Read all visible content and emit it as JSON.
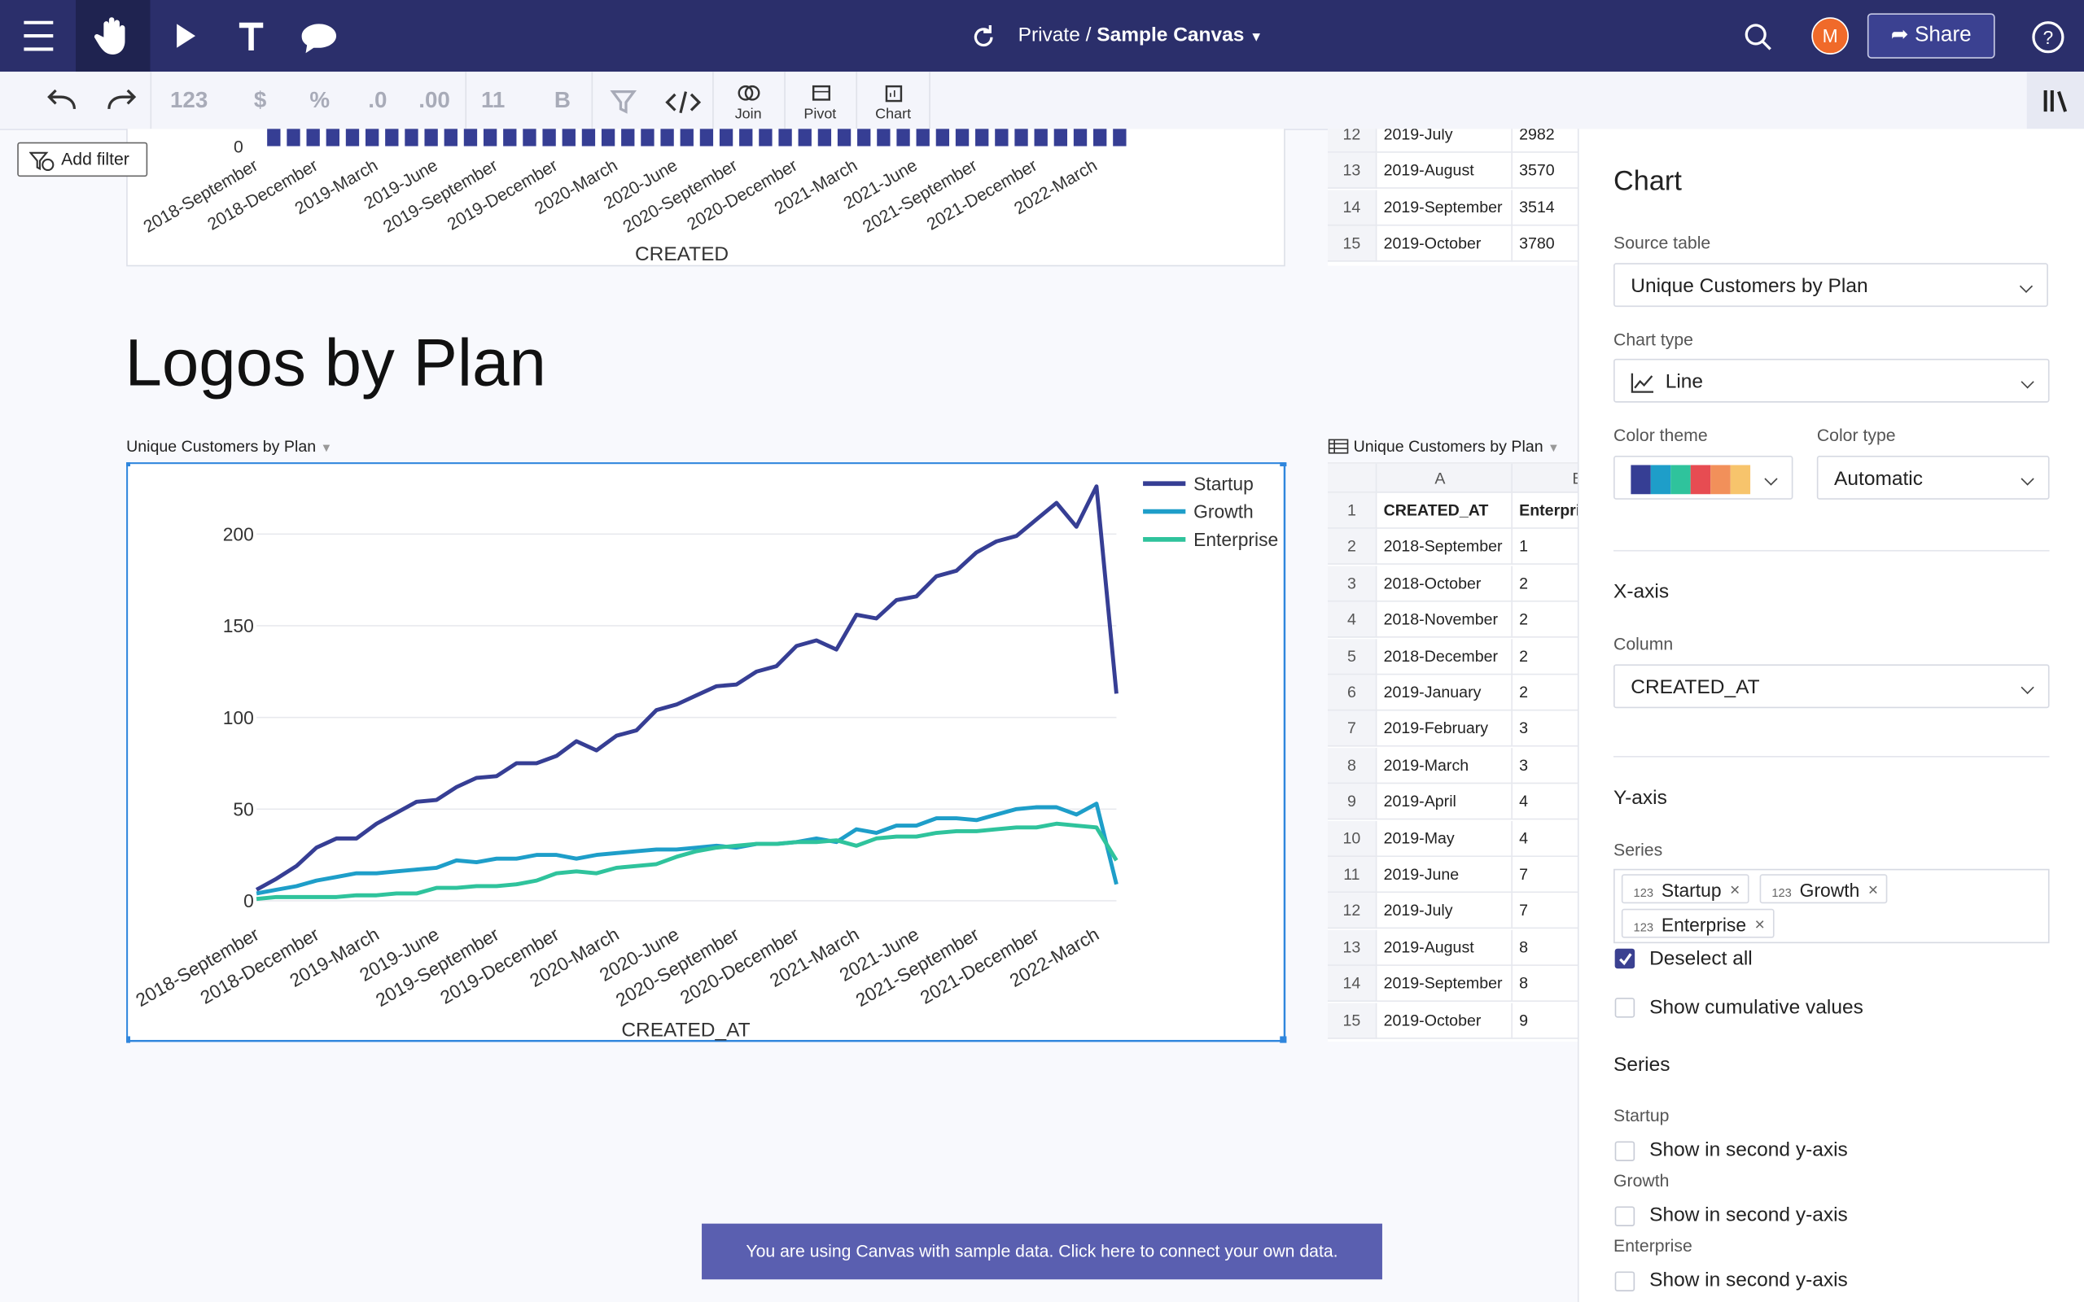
{
  "header": {
    "title_prefix": "Private /",
    "title": "Sample Canvas",
    "avatar": "M",
    "share": "Share"
  },
  "toolbar": {
    "number_format": "123",
    "currency": "$",
    "percent": "%",
    "decrease_decimals": ".0",
    "increase_decimals": ".00",
    "font_size": "11",
    "bold": "B",
    "join": "Join",
    "pivot": "Pivot",
    "chart": "Chart"
  },
  "add_filter": "Add filter",
  "top_chart": {
    "ytick": "0",
    "x_labels": [
      "2018-September",
      "2018-December",
      "2019-March",
      "2019-June",
      "2019-September",
      "2019-December",
      "2020-March",
      "2020-June",
      "2020-September",
      "2020-December",
      "2021-March",
      "2021-June",
      "2021-September",
      "2021-December",
      "2022-March"
    ],
    "x_axis_label": "CREATED"
  },
  "top_table": {
    "rows": [
      [
        "12",
        "2019-July",
        "2982"
      ],
      [
        "13",
        "2019-August",
        "3570"
      ],
      [
        "14",
        "2019-September",
        "3514"
      ],
      [
        "15",
        "2019-October",
        "3780"
      ]
    ]
  },
  "section_title": "Logos by Plan",
  "chart_source": "Unique Customers by Plan",
  "chart_data": {
    "type": "line",
    "x_label": "CREATED_AT",
    "categories": [
      "2018-September",
      null,
      null,
      "2018-December",
      null,
      null,
      "2019-March",
      null,
      null,
      "2019-June",
      null,
      null,
      "2019-September",
      null,
      null,
      "2019-December",
      null,
      null,
      "2020-March",
      null,
      null,
      "2020-June",
      null,
      null,
      "2020-September",
      null,
      null,
      "2020-December",
      null,
      null,
      "2021-March",
      null,
      null,
      "2021-June",
      null,
      null,
      "2021-September",
      null,
      null,
      "2021-December",
      null,
      null,
      "2022-March",
      null
    ],
    "series": [
      {
        "name": "Startup",
        "color": "#363e94",
        "values": [
          6,
          12,
          19,
          29,
          34,
          34,
          42,
          48,
          54,
          55,
          62,
          67,
          68,
          75,
          75,
          79,
          87,
          82,
          90,
          93,
          104,
          107,
          112,
          117,
          118,
          125,
          128,
          139,
          142,
          137,
          156,
          154,
          164,
          166,
          177,
          180,
          190,
          196,
          199,
          208,
          217,
          204,
          226,
          113
        ]
      },
      {
        "name": "Growth",
        "color": "#1e9ec9",
        "values": [
          4,
          6,
          8,
          11,
          13,
          15,
          15,
          16,
          17,
          18,
          22,
          21,
          23,
          23,
          25,
          25,
          23,
          25,
          26,
          27,
          28,
          28,
          29,
          30,
          29,
          31,
          31,
          32,
          34,
          32,
          39,
          37,
          41,
          41,
          45,
          45,
          44,
          47,
          50,
          51,
          51,
          47,
          53,
          9
        ]
      },
      {
        "name": "Enterprise",
        "color": "#2fc39c",
        "values": [
          1,
          2,
          2,
          2,
          2,
          3,
          3,
          4,
          4,
          7,
          7,
          8,
          8,
          9,
          11,
          15,
          16,
          15,
          18,
          19,
          20,
          24,
          27,
          29,
          30,
          31,
          31,
          32,
          32,
          33,
          30,
          34,
          35,
          35,
          37,
          38,
          38,
          39,
          40,
          40,
          42,
          41,
          40,
          22
        ]
      }
    ],
    "ylim": [
      0,
      230
    ],
    "yticks": [
      0,
      50,
      100,
      150,
      200
    ],
    "grid": true,
    "legend": "upper right"
  },
  "table": {
    "title": "Unique Customers by Plan",
    "columns": [
      "A",
      "B"
    ],
    "rows": [
      [
        "1",
        "CREATED_AT",
        "Enterprise"
      ],
      [
        "2",
        "2018-September",
        "1"
      ],
      [
        "3",
        "2018-October",
        "2"
      ],
      [
        "4",
        "2018-November",
        "2"
      ],
      [
        "5",
        "2018-December",
        "2"
      ],
      [
        "6",
        "2019-January",
        "2"
      ],
      [
        "7",
        "2019-February",
        "3"
      ],
      [
        "8",
        "2019-March",
        "3"
      ],
      [
        "9",
        "2019-April",
        "4"
      ],
      [
        "10",
        "2019-May",
        "4"
      ],
      [
        "11",
        "2019-June",
        "7"
      ],
      [
        "12",
        "2019-July",
        "7"
      ],
      [
        "13",
        "2019-August",
        "8"
      ],
      [
        "14",
        "2019-September",
        "8"
      ],
      [
        "15",
        "2019-October",
        "9"
      ]
    ]
  },
  "panel": {
    "title": "Chart",
    "source_label": "Source table",
    "source": "Unique Customers by Plan",
    "type_label": "Chart type",
    "type": "Line",
    "theme_label": "Color theme",
    "color_type_label": "Color type",
    "color_type": "Automatic",
    "x_title": "X-axis",
    "column_label": "Column",
    "column": "CREATED_AT",
    "y_title": "Y-axis",
    "series_label": "Series",
    "tag_prefix": "123",
    "tags": [
      "Startup",
      "Growth",
      "Enterprise"
    ],
    "deselect": "Deselect all",
    "cumulative": "Show cumulative values",
    "series_title": "Series",
    "series_opts": [
      {
        "name": "Startup",
        "option": "Show in second y-axis"
      },
      {
        "name": "Growth",
        "option": "Show in second y-axis"
      },
      {
        "name": "Enterprise",
        "option": "Show in second y-axis"
      }
    ]
  },
  "banner": "You are using Canvas with sample data. Click here to connect your own data."
}
